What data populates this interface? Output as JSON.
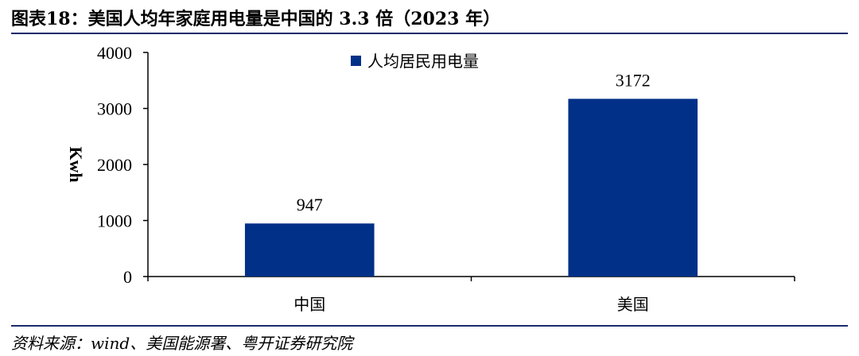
{
  "header": {
    "title": "图表18：美国人均年家庭用电量是中国的 3.3 倍（2023 年）"
  },
  "footer": {
    "source": "资料来源：wind、美国能源署、粤开证券研究院"
  },
  "colors": {
    "bar": "#003087",
    "axis": "#000000",
    "rule": "#1a2a6c"
  },
  "chart_data": {
    "type": "bar",
    "title": "",
    "xlabel": "",
    "ylabel": "Kwh",
    "categories": [
      "中国",
      "美国"
    ],
    "series": [
      {
        "name": "人均居民用电量",
        "values": [
          947,
          3172
        ]
      }
    ],
    "data_labels": [
      "947",
      "3172"
    ],
    "ylim": [
      0,
      4000
    ],
    "yticks": [
      0,
      1000,
      2000,
      3000,
      4000
    ],
    "ytick_labels": [
      "0",
      "1000",
      "2000",
      "3000",
      "4000"
    ],
    "grid": false,
    "legend_position": "top-center"
  }
}
